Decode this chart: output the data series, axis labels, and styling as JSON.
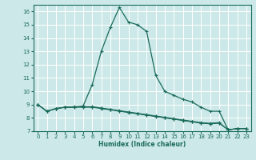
{
  "title": "",
  "xlabel": "Humidex (Indice chaleur)",
  "background_color": "#cce8e8",
  "grid_color": "#ffffff",
  "line_color": "#1a6b5a",
  "x_values": [
    0,
    1,
    2,
    3,
    4,
    5,
    6,
    7,
    8,
    9,
    10,
    11,
    12,
    13,
    14,
    15,
    16,
    17,
    18,
    19,
    20,
    21,
    22,
    23
  ],
  "line_peak_y": [
    9.0,
    8.5,
    8.7,
    8.8,
    8.8,
    8.9,
    10.5,
    13.0,
    14.8,
    16.3,
    15.2,
    15.0,
    14.5,
    11.2,
    10.0,
    9.7,
    9.4,
    9.2,
    8.8,
    8.5,
    8.5,
    7.1,
    7.2,
    7.2
  ],
  "line_flat1_y": [
    9.0,
    8.5,
    8.7,
    8.8,
    8.85,
    8.85,
    8.85,
    8.75,
    8.65,
    8.55,
    8.45,
    8.35,
    8.25,
    8.15,
    8.05,
    7.95,
    7.85,
    7.75,
    7.65,
    7.6,
    7.65,
    7.1,
    7.2,
    7.2
  ],
  "line_flat2_y": [
    9.0,
    8.5,
    8.7,
    8.8,
    8.8,
    8.8,
    8.8,
    8.7,
    8.6,
    8.5,
    8.4,
    8.3,
    8.2,
    8.1,
    8.0,
    7.9,
    7.8,
    7.7,
    7.6,
    7.55,
    7.6,
    7.1,
    7.2,
    7.2
  ],
  "line_flat3_y": [
    9.0,
    8.5,
    8.7,
    8.8,
    8.82,
    8.82,
    8.82,
    8.72,
    8.62,
    8.52,
    8.42,
    8.32,
    8.22,
    8.12,
    8.02,
    7.92,
    7.82,
    7.72,
    7.62,
    7.57,
    7.62,
    7.1,
    7.2,
    7.2
  ],
  "xlim": [
    -0.5,
    23.5
  ],
  "ylim": [
    7,
    16.5
  ],
  "yticks": [
    7,
    8,
    9,
    10,
    11,
    12,
    13,
    14,
    15,
    16
  ],
  "xticks": [
    0,
    1,
    2,
    3,
    4,
    5,
    6,
    7,
    8,
    9,
    10,
    11,
    12,
    13,
    14,
    15,
    16,
    17,
    18,
    19,
    20,
    21,
    22,
    23
  ]
}
